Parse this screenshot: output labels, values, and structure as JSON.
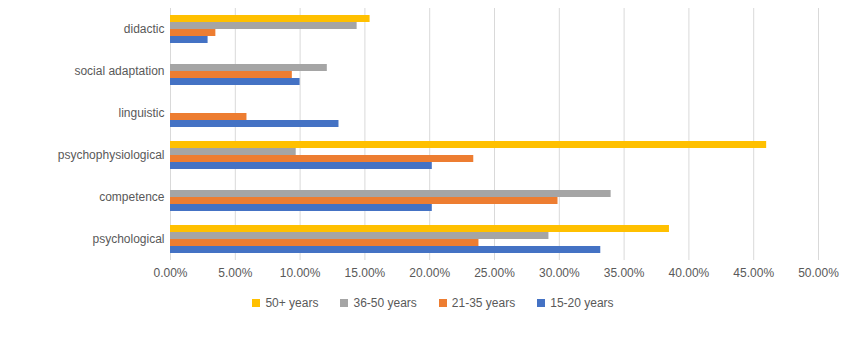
{
  "chart_data": {
    "type": "bar",
    "orientation": "horizontal",
    "categories": [
      "didactic",
      "social adaptation",
      "linguistic",
      "psychophysiological",
      "competence",
      "psychological"
    ],
    "series": [
      {
        "name": "50+ years",
        "color": "#ffc000",
        "values": [
          15.4,
          0,
          0,
          46.0,
          0,
          38.5
        ]
      },
      {
        "name": "36-50 years",
        "color": "#a5a5a5",
        "values": [
          14.4,
          12.1,
          0,
          9.7,
          34.0,
          29.2
        ]
      },
      {
        "name": "21-35 years",
        "color": "#ed7d31",
        "values": [
          3.5,
          9.4,
          5.9,
          23.4,
          29.9,
          23.8
        ]
      },
      {
        "name": "15-20 years",
        "color": "#4472c4",
        "values": [
          2.9,
          10.0,
          13.0,
          20.2,
          20.2,
          33.2
        ]
      }
    ],
    "xlim": [
      0,
      50
    ],
    "xticks": [
      {
        "value": 0,
        "label": "0.00%"
      },
      {
        "value": 5,
        "label": "5.00%"
      },
      {
        "value": 10,
        "label": "10.00%"
      },
      {
        "value": 15,
        "label": "15.00%"
      },
      {
        "value": 20,
        "label": "20.00%"
      },
      {
        "value": 25,
        "label": "25.00%"
      },
      {
        "value": 30,
        "label": "30.00%"
      },
      {
        "value": 35,
        "label": "35.00%"
      },
      {
        "value": 40,
        "label": "40.00%"
      },
      {
        "value": 45,
        "label": "45.00%"
      },
      {
        "value": 50,
        "label": "50.00%"
      }
    ],
    "grid": true,
    "legend": "bottom"
  }
}
